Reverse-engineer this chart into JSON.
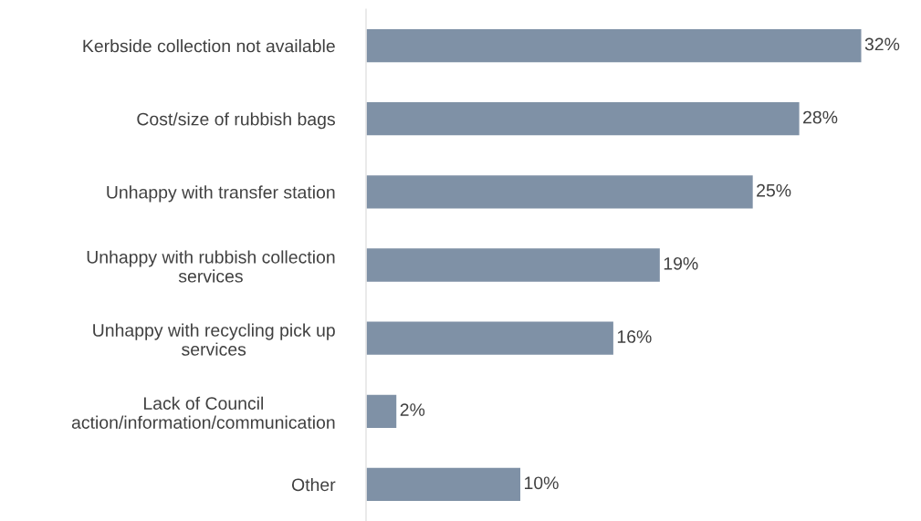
{
  "chart_data": {
    "type": "bar",
    "orientation": "horizontal",
    "categories": [
      "Kerbside collection not available",
      "Cost/size of rubbish bags",
      "Unhappy with transfer station",
      "Unhappy with rubbish collection\nservices",
      "Unhappy with recycling pick up\nservices",
      "Lack of Council\naction/information/communication",
      "Other"
    ],
    "values": [
      32,
      28,
      25,
      19,
      16,
      2,
      10
    ],
    "value_labels": [
      "32%",
      "28%",
      "25%",
      "19%",
      "16%",
      "2%",
      "10%"
    ],
    "color": "#7f91a6",
    "grid": false,
    "legend": false
  }
}
